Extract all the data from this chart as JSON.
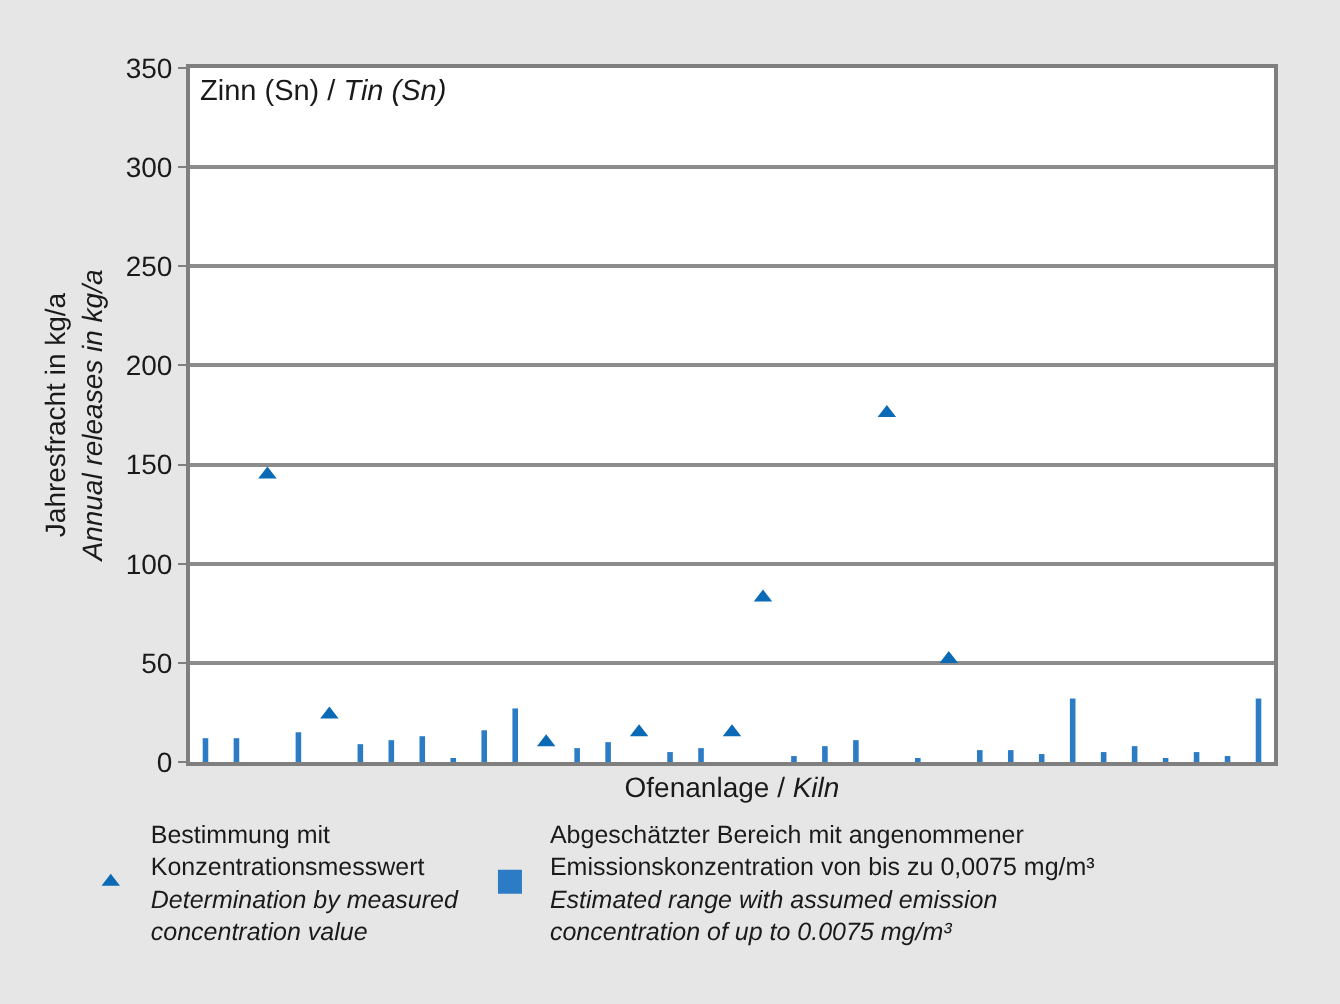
{
  "chart_data": {
    "type": "bar",
    "title": "Zinn (Sn) / Tin (Sn)",
    "xlabel": "Ofenanlage / Kiln",
    "ylabel": "Jahresfracht in kg/a\nAnnual releases in kg/a",
    "categories": [
      null,
      null,
      null,
      null,
      null,
      null,
      null,
      null,
      null,
      null,
      null,
      null,
      null,
      null,
      null,
      null,
      null,
      null,
      null,
      null,
      null,
      null,
      null,
      null,
      null,
      null,
      null,
      null,
      null,
      null,
      null,
      null,
      null,
      null,
      null
    ],
    "series": [
      {
        "type": "scatter",
        "marker": "triangle",
        "name": "Bestimmung mit\nKonzentrationsmesswert\nDetermination by measured\nconcentration value",
        "color": "#0a6ab6",
        "values": [
          null,
          null,
          145,
          null,
          24,
          null,
          null,
          null,
          null,
          null,
          null,
          10,
          null,
          null,
          15,
          null,
          null,
          15,
          83,
          null,
          null,
          null,
          176,
          null,
          52,
          null,
          null,
          null,
          null,
          null,
          null,
          null,
          null,
          null,
          null
        ]
      },
      {
        "name": "Abgeschätzter Bereich mit angenommener\nEmissionskonzentration von bis zu 0,0075 mg/m³\nEstimated range with assumed emission\nconcentration of up to 0.0075 mg/m³",
        "color": "#2b7cc4",
        "values": [
          12,
          12,
          null,
          15,
          null,
          9,
          11,
          13,
          2,
          16,
          27,
          null,
          7,
          10,
          null,
          5,
          7,
          null,
          null,
          3,
          8,
          11,
          null,
          2,
          null,
          6,
          6,
          4,
          32,
          5,
          8,
          2,
          5,
          3,
          32
        ]
      }
    ],
    "ylim": [
      0,
      350
    ],
    "yticks": [
      0,
      50,
      100,
      150,
      200,
      250,
      300,
      350
    ],
    "grid": "y",
    "legend": "bottom"
  }
}
